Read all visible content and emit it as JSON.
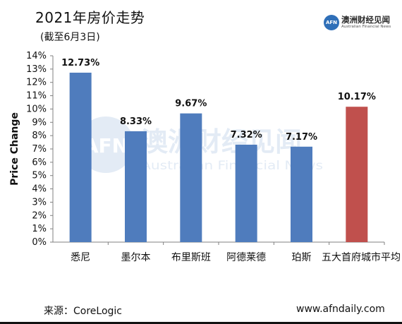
{
  "header": {
    "title": "2021年房价走势",
    "subtitle": "(截至6月3日)"
  },
  "brand": {
    "logo_text": "AFN",
    "name_cn": "澳洲财经见闻",
    "name_en": "Australian Financial News"
  },
  "watermark": {
    "logo_text": "AFN",
    "name_cn": "澳洲财经见闻",
    "name_en": "Australian Financial News"
  },
  "footer": {
    "source": "来源：CoreLogic",
    "website": "www.afndaily.com"
  },
  "colors": {
    "bar_city": "#4f7cbd",
    "bar_average": "#c0504d",
    "axis": "#808080",
    "text": "#111111"
  },
  "chart_data": {
    "type": "bar",
    "title": "2021年房价走势",
    "subtitle": "(截至6月3日)",
    "xlabel": "",
    "ylabel": "Price Change",
    "ylim": [
      0,
      14
    ],
    "y_ticks": [
      "0%",
      "1%",
      "2%",
      "3%",
      "4%",
      "5%",
      "6%",
      "7%",
      "8%",
      "9%",
      "10%",
      "11%",
      "12%",
      "13%",
      "14%"
    ],
    "grid": false,
    "legend": "none",
    "categories": [
      "悉尼",
      "墨尔本",
      "布里斯班",
      "阿德莱德",
      "珀斯",
      "五大首府城市平均"
    ],
    "values": [
      12.73,
      8.33,
      9.67,
      7.32,
      7.17,
      10.17
    ],
    "data_labels": [
      "12.73%",
      "8.33%",
      "9.67%",
      "7.32%",
      "7.17%",
      "10.17%"
    ],
    "bar_colors": [
      "#4f7cbd",
      "#4f7cbd",
      "#4f7cbd",
      "#4f7cbd",
      "#4f7cbd",
      "#c0504d"
    ]
  }
}
